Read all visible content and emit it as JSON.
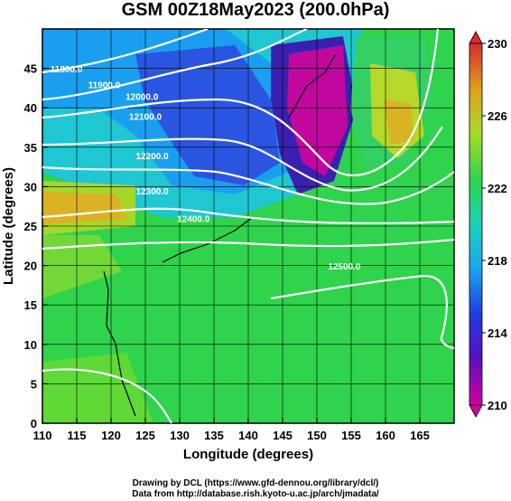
{
  "title": "GSM 00Z18May2023 (200.0hPa)",
  "x_axis": {
    "label": "Longitude (degrees)",
    "ticks": [
      "110",
      "115",
      "120",
      "125",
      "130",
      "135",
      "140",
      "145",
      "150",
      "155",
      "160",
      "165"
    ],
    "range": [
      110,
      170
    ]
  },
  "y_axis": {
    "label": "Latitude  (degrees)",
    "ticks": [
      "0",
      "5",
      "10",
      "15",
      "20",
      "25",
      "30",
      "35",
      "40",
      "45"
    ],
    "range": [
      0,
      50
    ]
  },
  "colorbar": {
    "labels": [
      "230",
      "226",
      "222",
      "218",
      "214",
      "210"
    ],
    "range": [
      210,
      230
    ],
    "colors": [
      "#d3009e",
      "#3020b8",
      "#1a8cff",
      "#19d2cc",
      "#2bd54c",
      "#7ddc27",
      "#dcc525",
      "#e25a1f",
      "#d72c2c"
    ]
  },
  "contours": [
    {
      "label": "11800.0",
      "lon": 113.5,
      "lat": 44.5
    },
    {
      "label": "11900.0",
      "lon": 119.0,
      "lat": 42.5
    },
    {
      "label": "12000.0",
      "lon": 124.5,
      "lat": 41.0
    },
    {
      "label": "12100.0",
      "lon": 125.0,
      "lat": 38.5
    },
    {
      "label": "12200.0",
      "lon": 126.0,
      "lat": 33.5
    },
    {
      "label": "12300.0",
      "lon": 126.0,
      "lat": 29.0
    },
    {
      "label": "12400.0",
      "lon": 132.0,
      "lat": 25.5
    },
    {
      "label": "12500.0",
      "lon": 154.0,
      "lat": 19.5
    }
  ],
  "credits": {
    "line1": "Drawing by DCL (https://www.gfd-dennou.org/library/dcl/)",
    "line2": "Data from http://database.rish.kyoto-u.ac.jp/arch/jmadata/"
  }
}
